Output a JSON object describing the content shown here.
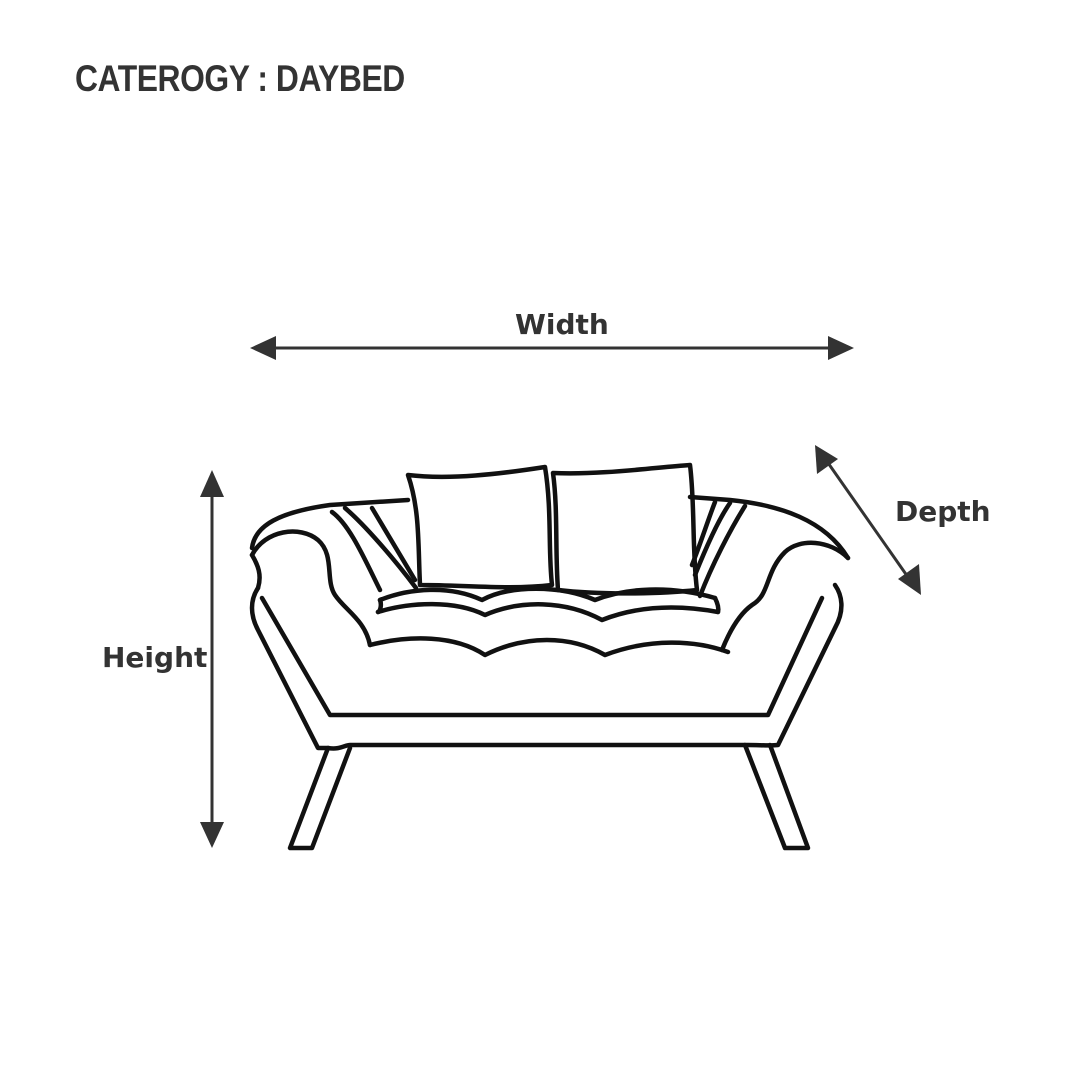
{
  "header": {
    "category_title": "CATEROGY : DAYBED"
  },
  "dimensions": {
    "width_label": "Width",
    "height_label": "Height",
    "depth_label": "Depth"
  },
  "icons": {
    "product": "daybed-icon",
    "arrows": "double-arrow-icon"
  },
  "colors": {
    "text": "#333333",
    "outline": "#111111",
    "background": "#ffffff"
  }
}
